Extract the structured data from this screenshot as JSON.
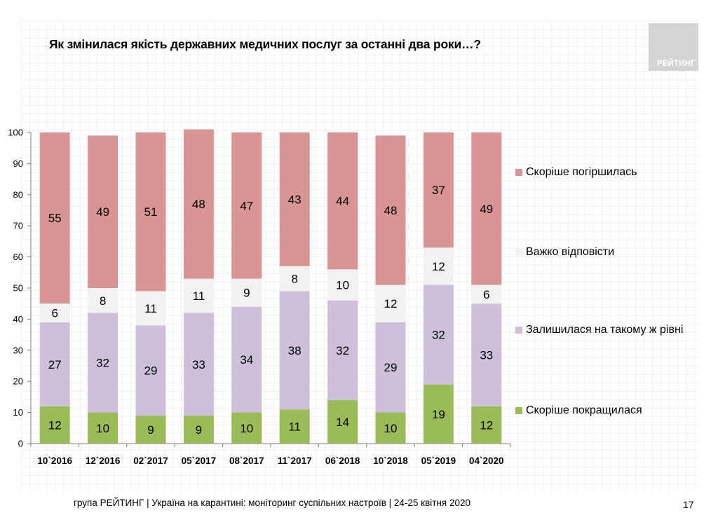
{
  "title": "Як змінилася якість державних медичних послуг за останні два роки…?",
  "logo_text": "РЕЙТИНГ",
  "footer": "група РЕЙТИНГ | Україна на карантині: моніторинг суспільних настроїв  | 24-25 квітня  2020",
  "page_number": "17",
  "colors": {
    "worsened": "#d99594",
    "hard_to_say": "#f2f2f2",
    "same": "#ccc0da",
    "improved": "#9bbb59"
  },
  "chart_data": {
    "type": "bar",
    "stacked": true,
    "categories": [
      "10`2016",
      "12`2016",
      "02`2017",
      "05`2017",
      "08`2017",
      "11`2017",
      "06`2018",
      "10`2018",
      "05`2019",
      "04`2020"
    ],
    "series": [
      {
        "name": "Скоріше покращилася",
        "key": "improved",
        "values": [
          12,
          10,
          9,
          9,
          10,
          11,
          14,
          10,
          19,
          12
        ]
      },
      {
        "name": "Залишилася на такому ж рівні",
        "key": "same",
        "values": [
          27,
          32,
          29,
          33,
          34,
          38,
          32,
          29,
          32,
          33
        ]
      },
      {
        "name": "Важко відповісти",
        "key": "hard_to_say",
        "values": [
          6,
          8,
          11,
          11,
          9,
          8,
          10,
          12,
          12,
          6
        ]
      },
      {
        "name": "Скоріше погіршилась",
        "key": "worsened",
        "values": [
          55,
          49,
          51,
          48,
          47,
          43,
          44,
          48,
          37,
          49
        ]
      }
    ],
    "y_ticks": [
      0,
      10,
      20,
      30,
      40,
      50,
      60,
      70,
      80,
      90,
      100
    ],
    "ylim": [
      0,
      100
    ],
    "legend_order": [
      "Скоріше погіршилась",
      "Важко відповісти",
      "Залишилася на такому ж рівні",
      "Скоріше покращилася"
    ],
    "legend_position": "right"
  }
}
